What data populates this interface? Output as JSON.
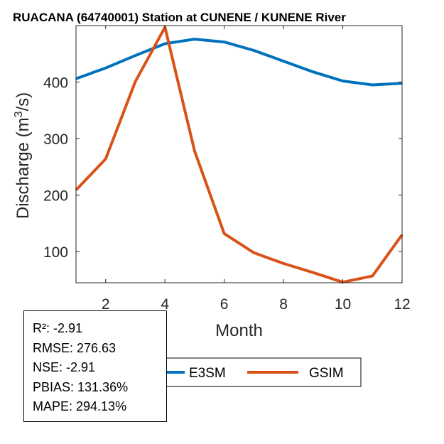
{
  "chart_data": {
    "type": "line",
    "title": "RUACANA (64740001)  Station at  CUNENE / KUNENE  River",
    "xlabel": "Month",
    "ylabel": "Discharge (m³/s)",
    "xlim": [
      1,
      12
    ],
    "ylim": [
      45,
      500
    ],
    "xticks": [
      2,
      4,
      6,
      8,
      10,
      12
    ],
    "yticks": [
      100,
      200,
      300,
      400
    ],
    "grid": false,
    "legend_position": "bottom",
    "x": [
      1,
      2,
      3,
      4,
      5,
      6,
      7,
      8,
      9,
      10,
      11,
      12
    ],
    "series": [
      {
        "name": "E3SM",
        "color": "#0072BD",
        "values": [
          406,
          425,
          447,
          468,
          476,
          471,
          456,
          437,
          418,
          402,
          395,
          398
        ]
      },
      {
        "name": "GSIM",
        "color": "#D95319",
        "values": [
          209,
          264,
          401,
          497,
          278,
          132,
          98,
          79,
          63,
          46,
          57,
          130
        ]
      }
    ]
  },
  "stats": {
    "r2": "R²: -2.91",
    "rmse": "RMSE: 276.63",
    "nse": "NSE: -2.91",
    "pbias": "PBIAS: 131.36%",
    "mape": "MAPE: 294.13%"
  }
}
